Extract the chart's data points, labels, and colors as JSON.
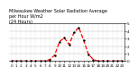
{
  "title": "Milwaukee Weather Solar Radiation Average\nper Hour W/m2\n(24 Hours)",
  "hours": [
    0,
    1,
    2,
    3,
    4,
    5,
    6,
    7,
    8,
    9,
    10,
    11,
    12,
    13,
    14,
    15,
    16,
    17,
    18,
    19,
    20,
    21,
    22,
    23
  ],
  "values": [
    0,
    0,
    0,
    0,
    0,
    0,
    0,
    0,
    20,
    80,
    260,
    310,
    220,
    380,
    450,
    280,
    90,
    20,
    0,
    0,
    0,
    0,
    0,
    0
  ],
  "line_color": "red",
  "marker_color": "black",
  "bg_color": "#ffffff",
  "ylim": [
    0,
    500
  ],
  "ytick_values": [
    0,
    100,
    200,
    300,
    400,
    500
  ],
  "ytick_labels": [
    "0",
    "1",
    "2",
    "3",
    "4",
    "5"
  ],
  "grid_color": "#aaaaaa",
  "title_fontsize": 3.5,
  "tick_fontsize": 3.0,
  "linewidth": 0.9,
  "markersize": 1.5
}
